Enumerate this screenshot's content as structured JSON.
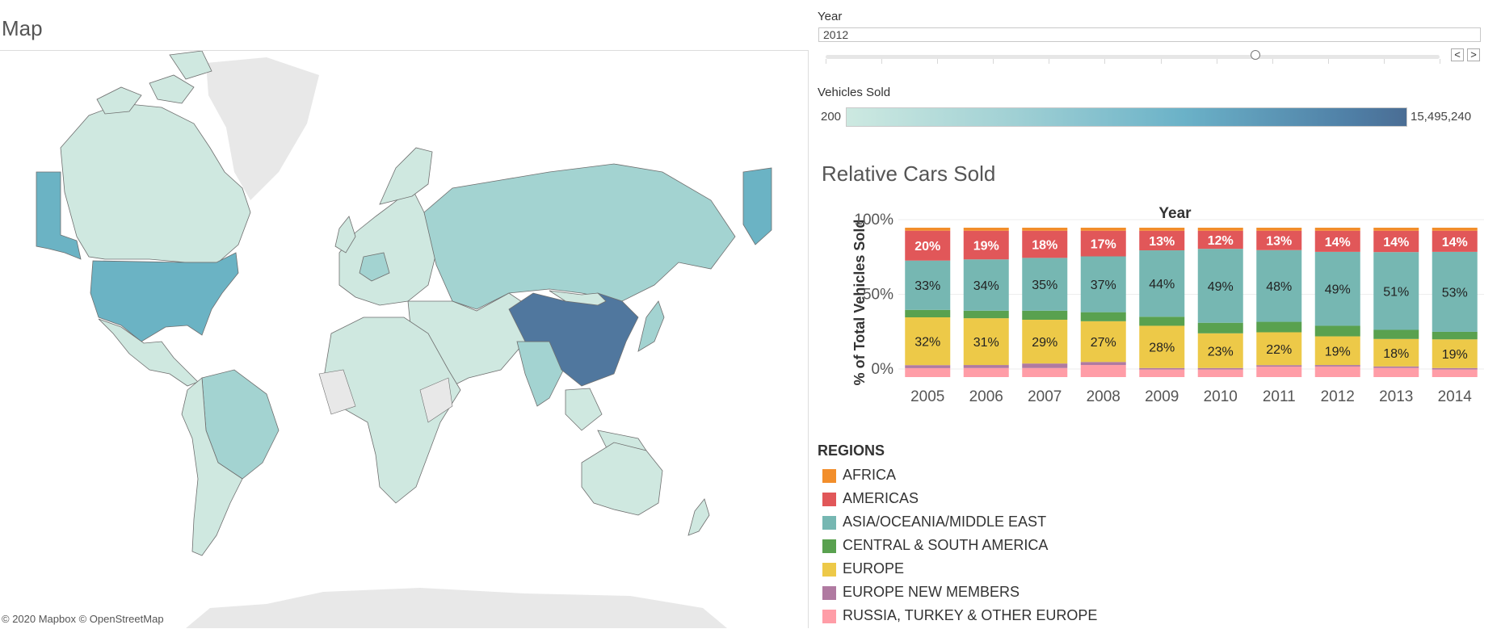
{
  "map": {
    "title": "Map",
    "attribution": "© 2020 Mapbox © OpenStreetMap",
    "colors": {
      "ocean": "#ffffff",
      "no_data": "#e8e8e8",
      "low": "#cfe8e0",
      "mid": "#a3d3d1",
      "high_mid": "#6bb3c4",
      "highest": "#50779e",
      "border": "#6f6f6f"
    }
  },
  "year_filter": {
    "label": "Year",
    "value": "2012",
    "prev_label": "<",
    "next_label": ">",
    "slider_fraction": 0.7
  },
  "vehicles_sold_legend": {
    "label": "Vehicles Sold",
    "min": "200",
    "max": "15,495,240"
  },
  "chart_data": {
    "type": "bar",
    "stacked": true,
    "title": "Relative Cars Sold",
    "xlabel": "Year",
    "ylabel": "% of Total Vehicles Sold",
    "ylim": [
      0,
      100
    ],
    "yticks": [
      "100%",
      "50%",
      "0%"
    ],
    "categories": [
      "2005",
      "2006",
      "2007",
      "2008",
      "2009",
      "2010",
      "2011",
      "2012",
      "2013",
      "2014"
    ],
    "series": [
      {
        "name": "RUSSIA, TURKEY & OTHER EUROPE",
        "color": "#ff9da7",
        "values": [
          6,
          6,
          6,
          8,
          5,
          5,
          7,
          7,
          6,
          5
        ]
      },
      {
        "name": "EUROPE NEW MEMBERS",
        "color": "#b07aa1",
        "values": [
          2,
          2,
          3,
          2,
          1,
          1,
          1,
          1,
          1,
          1
        ]
      },
      {
        "name": "EUROPE",
        "color": "#edc948",
        "values": [
          32,
          31,
          29,
          27,
          28,
          23,
          22,
          19,
          18,
          19
        ]
      },
      {
        "name": "CENTRAL & SOUTH AMERICA",
        "color": "#59a14f",
        "values": [
          5,
          5,
          6,
          6,
          6,
          7,
          7,
          7,
          6,
          5
        ]
      },
      {
        "name": "ASIA/OCEANIA/MIDDLE EAST",
        "color": "#76b7b2",
        "values": [
          33,
          34,
          35,
          37,
          44,
          49,
          48,
          49,
          51,
          53
        ]
      },
      {
        "name": "AMERICAS",
        "color": "#e15759",
        "values": [
          20,
          19,
          18,
          17,
          13,
          12,
          13,
          14,
          14,
          14
        ]
      },
      {
        "name": "AFRICA",
        "color": "#f28e2b",
        "values": [
          2,
          2,
          2,
          2,
          2,
          2,
          2,
          2,
          2,
          2
        ]
      }
    ],
    "labeled_series": {
      "AMERICAS": [
        "20%",
        "19%",
        "18%",
        "17%",
        "13%",
        "12%",
        "13%",
        "14%",
        "14%",
        "14%"
      ],
      "ASIA/OCEANIA/MIDDLE EAST": [
        "33%",
        "34%",
        "35%",
        "37%",
        "44%",
        "49%",
        "48%",
        "49%",
        "51%",
        "53%"
      ],
      "EUROPE": [
        "32%",
        "31%",
        "29%",
        "27%",
        "28%",
        "23%",
        "22%",
        "19%",
        "18%",
        "19%"
      ]
    }
  },
  "regions_legend": {
    "title": "REGIONS",
    "items": [
      {
        "label": "AFRICA",
        "color": "#f28e2b"
      },
      {
        "label": "AMERICAS",
        "color": "#e15759"
      },
      {
        "label": "ASIA/OCEANIA/MIDDLE EAST",
        "color": "#76b7b2"
      },
      {
        "label": "CENTRAL & SOUTH AMERICA",
        "color": "#59a14f"
      },
      {
        "label": "EUROPE",
        "color": "#edc948"
      },
      {
        "label": "EUROPE NEW MEMBERS",
        "color": "#b07aa1"
      },
      {
        "label": "RUSSIA, TURKEY & OTHER EUROPE",
        "color": "#ff9da7"
      }
    ]
  }
}
